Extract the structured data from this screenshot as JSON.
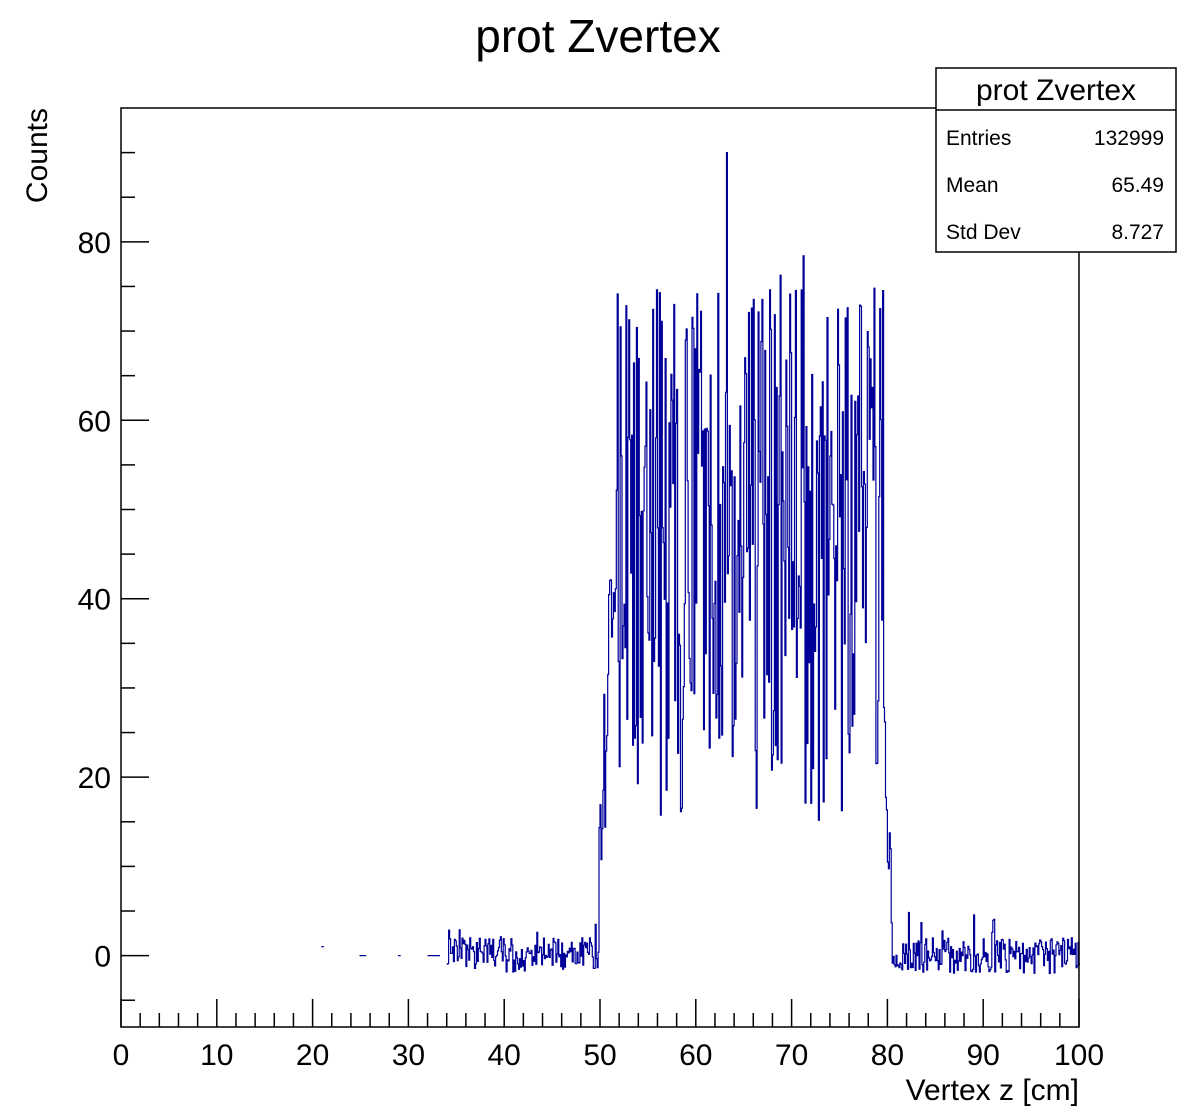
{
  "chart_data": {
    "type": "histogram",
    "title": "prot Zvertex",
    "xlabel": "Vertex z [cm]",
    "ylabel": "Counts",
    "xlim": [
      0,
      100
    ],
    "ylim": [
      -8,
      95
    ],
    "x_ticks": [
      0,
      10,
      20,
      30,
      40,
      50,
      60,
      70,
      80,
      90,
      100
    ],
    "y_ticks": [
      0,
      20,
      40,
      60,
      80
    ],
    "line_color": "#000099",
    "grid": false,
    "legend": "none",
    "stats_box": {
      "title": "prot Zvertex",
      "entries_label": "Entries",
      "entries_value": "132999",
      "mean_label": "Mean",
      "mean_value": "65.49",
      "stddev_label": "Std Dev",
      "stddev_value": "8.727"
    },
    "regions": [
      {
        "x_range": [
          0,
          34
        ],
        "level": 0,
        "spread": 0.2,
        "note": "sparse near-zero bins"
      },
      {
        "x_range": [
          34,
          49.5
        ],
        "level": 0,
        "spread": 2,
        "note": "small fluctuations around zero"
      },
      {
        "x_range": [
          49.5,
          51.5
        ],
        "level": 20,
        "spread": 15,
        "note": "rising edge"
      },
      {
        "x_range": [
          51.5,
          79.5
        ],
        "level": 45,
        "spread": 25,
        "note": "plateau, dense fluctuations between ~15 and ~90"
      },
      {
        "x_range": [
          79.5,
          80.5
        ],
        "level": 12,
        "spread": 10,
        "note": "falling edge"
      },
      {
        "x_range": [
          80.5,
          100
        ],
        "level": 0,
        "spread": 2,
        "note": "small fluctuations around zero"
      }
    ],
    "peak": {
      "x": 63.2,
      "y": 90
    }
  }
}
